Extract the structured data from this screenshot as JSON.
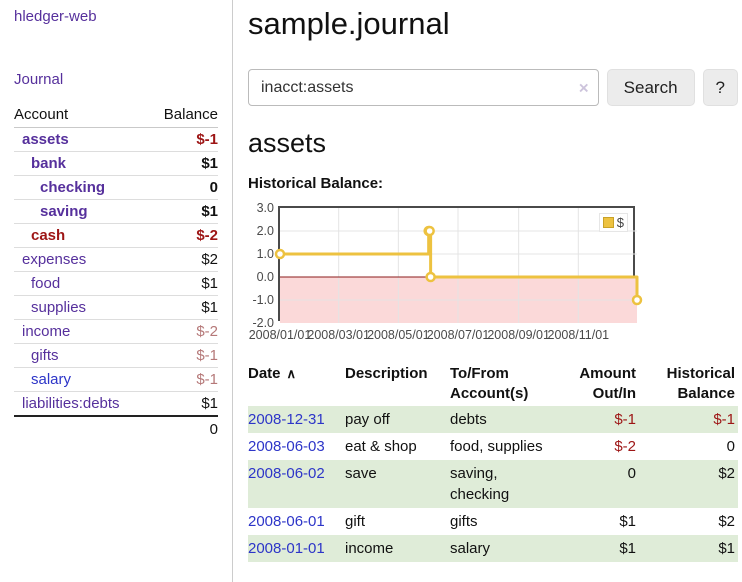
{
  "app": {
    "title": "hledger-web",
    "nav_journal": "Journal"
  },
  "colors": {
    "purple": "#56309c",
    "blue": "#2d35c8",
    "negstrong": "#9d1515",
    "negsoft": "#b57878",
    "rowgreen": "#dfecd8",
    "gold": "#edc240",
    "goldborder": "#c9a227"
  },
  "sidebar": {
    "columns": [
      "Account",
      "Balance"
    ],
    "accounts": [
      {
        "name": "assets",
        "indent": 0,
        "bold": true,
        "name_color": "purple",
        "balance": "$-1",
        "balance_color": "negstrong"
      },
      {
        "name": "bank",
        "indent": 1,
        "bold": true,
        "name_color": "purple",
        "balance": "$1",
        "balance_color": "ink"
      },
      {
        "name": "checking",
        "indent": 2,
        "bold": true,
        "name_color": "purple",
        "balance": "0",
        "balance_color": "ink"
      },
      {
        "name": "saving",
        "indent": 2,
        "bold": true,
        "name_color": "purple",
        "balance": "$1",
        "balance_color": "ink"
      },
      {
        "name": "cash",
        "indent": 1,
        "bold": true,
        "name_color": "negstrong",
        "balance": "$-2",
        "balance_color": "negstrong"
      },
      {
        "name": "expenses",
        "indent": 0,
        "bold": false,
        "name_color": "purple",
        "balance": "$2",
        "balance_color": "ink"
      },
      {
        "name": "food",
        "indent": 1,
        "bold": false,
        "name_color": "purple",
        "balance": "$1",
        "balance_color": "ink"
      },
      {
        "name": "supplies",
        "indent": 1,
        "bold": false,
        "name_color": "purple",
        "balance": "$1",
        "balance_color": "ink"
      },
      {
        "name": "income",
        "indent": 0,
        "bold": false,
        "name_color": "purple",
        "balance": "$-2",
        "balance_color": "negsoft"
      },
      {
        "name": "gifts",
        "indent": 1,
        "bold": false,
        "name_color": "purple",
        "balance": "$-1",
        "balance_color": "negsoft"
      },
      {
        "name": "salary",
        "indent": 1,
        "bold": false,
        "name_color": "blue",
        "balance": "$-1",
        "balance_color": "negsoft"
      },
      {
        "name": "liabilities:debts",
        "indent": 0,
        "bold": false,
        "name_color": "purple",
        "balance": "$1",
        "balance_color": "ink"
      }
    ],
    "total": "0"
  },
  "main": {
    "title": "sample.journal",
    "search": {
      "value": "inacct:assets",
      "clear_icon": "×",
      "button_label": "Search",
      "help_label": "?"
    },
    "account_heading": "assets"
  },
  "chart_data": {
    "type": "line",
    "step": true,
    "title": "Historical Balance:",
    "series": [
      {
        "name": "$",
        "color": "#edc240",
        "points": [
          [
            "2008-01-01",
            1
          ],
          [
            "2008-06-01",
            2
          ],
          [
            "2008-06-02",
            2
          ],
          [
            "2008-06-03",
            0
          ],
          [
            "2008-12-31",
            -1
          ]
        ]
      }
    ],
    "x_ticks": [
      "2008/01/01",
      "2008/03/01",
      "2008/05/01",
      "2008/07/01",
      "2008/09/01",
      "2008/11/01"
    ],
    "y_ticks": [
      "3.0",
      "2.0",
      "1.0",
      "0.0",
      "-1.0",
      "-2.0"
    ],
    "ylim": [
      -2,
      3
    ],
    "x_range": [
      "2008-01-01",
      "2008-12-31"
    ],
    "grid": true,
    "legend_position": "top-right",
    "negative_region_color": "#fbd9d9",
    "zero_line_color": "#8b1a1a"
  },
  "register": {
    "sort_arrow": "∧",
    "headers": [
      {
        "key": "date",
        "line1": "Date",
        "line2": "",
        "align": "left",
        "sortable": true
      },
      {
        "key": "desc",
        "line1": "Description",
        "line2": "",
        "align": "left",
        "sortable": false
      },
      {
        "key": "accts",
        "line1": "To/From",
        "line2": "Account(s)",
        "align": "left",
        "sortable": false
      },
      {
        "key": "amt",
        "line1": "Amount",
        "line2": "Out/In",
        "align": "right",
        "sortable": false
      },
      {
        "key": "bal",
        "line1": "Historical",
        "line2": "Balance",
        "align": "right",
        "sortable": false
      }
    ],
    "rows": [
      {
        "date": "2008-12-31",
        "description": "pay off",
        "accounts": "debts",
        "amount": "$-1",
        "amount_negative": true,
        "balance": "$-1",
        "balance_negative": true,
        "highlighted": true
      },
      {
        "date": "2008-06-03",
        "description": "eat & shop",
        "accounts": "food, supplies",
        "amount": "$-2",
        "amount_negative": true,
        "balance": "0",
        "balance_negative": false,
        "highlighted": false
      },
      {
        "date": "2008-06-02",
        "description": "save",
        "accounts": "saving, checking",
        "amount": "0",
        "amount_negative": false,
        "balance": "$2",
        "balance_negative": false,
        "highlighted": true
      },
      {
        "date": "2008-06-01",
        "description": "gift",
        "accounts": "gifts",
        "amount": "$1",
        "amount_negative": false,
        "balance": "$2",
        "balance_negative": false,
        "highlighted": false
      },
      {
        "date": "2008-01-01",
        "description": "income",
        "accounts": "salary",
        "amount": "$1",
        "amount_negative": false,
        "balance": "$1",
        "balance_negative": false,
        "highlighted": true
      }
    ]
  }
}
